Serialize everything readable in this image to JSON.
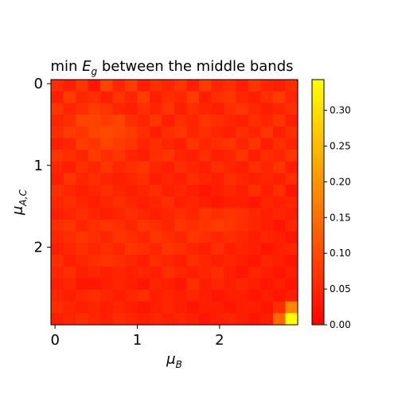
{
  "chart_data": {
    "type": "heatmap",
    "title_prefix": "min ",
    "title_symbol": "E",
    "title_subscript": "g",
    "title_suffix": " between the middle bands",
    "xlabel_symbol": "μ",
    "xlabel_subscript": "B",
    "ylabel_symbol": "μ",
    "ylabel_subscript": "A,C",
    "xlim": [
      -0.05,
      2.95
    ],
    "ylim": [
      2.95,
      -0.05
    ],
    "x_ticks": [
      "0",
      "1",
      "2"
    ],
    "y_ticks": [
      "0",
      "1",
      "2"
    ],
    "colormap": "autumn",
    "colormap_colors": [
      "#ff0000",
      "#ffff00"
    ],
    "color_range": [
      0.0,
      0.343
    ],
    "colorbar_ticks": [
      "0.00",
      "0.05",
      "0.10",
      "0.15",
      "0.20",
      "0.25",
      "0.30"
    ],
    "grid": false,
    "values": [
      [
        0.06,
        0.04,
        0.07,
        0.03,
        0.09,
        0.05,
        0.08,
        0.04,
        0.06,
        0.05,
        0.07,
        0.04,
        0.08,
        0.05,
        0.06,
        0.04,
        0.07,
        0.05,
        0.04,
        0.06
      ],
      [
        0.04,
        0.08,
        0.05,
        0.06,
        0.04,
        0.07,
        0.05,
        0.08,
        0.04,
        0.06,
        0.05,
        0.08,
        0.04,
        0.06,
        0.07,
        0.05,
        0.04,
        0.06,
        0.08,
        0.05
      ],
      [
        0.07,
        0.05,
        0.06,
        0.08,
        0.07,
        0.05,
        0.04,
        0.06,
        0.05,
        0.07,
        0.04,
        0.06,
        0.05,
        0.04,
        0.06,
        0.07,
        0.05,
        0.04,
        0.05,
        0.06
      ],
      [
        0.05,
        0.06,
        0.09,
        0.09,
        0.08,
        0.09,
        0.06,
        0.05,
        0.07,
        0.04,
        0.06,
        0.05,
        0.07,
        0.06,
        0.05,
        0.04,
        0.06,
        0.05,
        0.07,
        0.04
      ],
      [
        0.06,
        0.08,
        0.07,
        0.09,
        0.1,
        0.09,
        0.08,
        0.06,
        0.04,
        0.06,
        0.07,
        0.05,
        0.06,
        0.05,
        0.04,
        0.06,
        0.05,
        0.07,
        0.04,
        0.06
      ],
      [
        0.04,
        0.05,
        0.08,
        0.07,
        0.09,
        0.08,
        0.07,
        0.05,
        0.06,
        0.05,
        0.04,
        0.07,
        0.05,
        0.06,
        0.07,
        0.05,
        0.07,
        0.04,
        0.06,
        0.05
      ],
      [
        0.07,
        0.06,
        0.05,
        0.08,
        0.06,
        0.07,
        0.05,
        0.04,
        0.06,
        0.07,
        0.05,
        0.04,
        0.06,
        0.04,
        0.05,
        0.07,
        0.04,
        0.06,
        0.05,
        0.07
      ],
      [
        0.05,
        0.04,
        0.06,
        0.05,
        0.07,
        0.05,
        0.06,
        0.07,
        0.05,
        0.04,
        0.06,
        0.05,
        0.04,
        0.06,
        0.05,
        0.04,
        0.06,
        0.05,
        0.07,
        0.04
      ],
      [
        0.04,
        0.07,
        0.05,
        0.06,
        0.05,
        0.04,
        0.05,
        0.06,
        0.04,
        0.05,
        0.04,
        0.06,
        0.05,
        0.04,
        0.06,
        0.05,
        0.04,
        0.05,
        0.04,
        0.06
      ],
      [
        0.06,
        0.05,
        0.04,
        0.05,
        0.06,
        0.05,
        0.04,
        0.05,
        0.06,
        0.04,
        0.05,
        0.04,
        0.03,
        0.04,
        0.05,
        0.04,
        0.06,
        0.04,
        0.06,
        0.03
      ],
      [
        0.05,
        0.06,
        0.05,
        0.04,
        0.05,
        0.06,
        0.05,
        0.04,
        0.05,
        0.06,
        0.04,
        0.05,
        0.04,
        0.03,
        0.04,
        0.04,
        0.03,
        0.05,
        0.04,
        0.05
      ],
      [
        0.04,
        0.05,
        0.06,
        0.05,
        0.04,
        0.05,
        0.06,
        0.05,
        0.04,
        0.05,
        0.06,
        0.05,
        0.07,
        0.06,
        0.07,
        0.06,
        0.05,
        0.04,
        0.05,
        0.04
      ],
      [
        0.06,
        0.07,
        0.05,
        0.06,
        0.07,
        0.06,
        0.05,
        0.07,
        0.06,
        0.05,
        0.07,
        0.06,
        0.07,
        0.08,
        0.07,
        0.06,
        0.05,
        0.04,
        0.03,
        0.05
      ],
      [
        0.05,
        0.06,
        0.07,
        0.06,
        0.05,
        0.07,
        0.06,
        0.05,
        0.07,
        0.06,
        0.05,
        0.07,
        0.06,
        0.05,
        0.06,
        0.05,
        0.04,
        0.05,
        0.04,
        0.03
      ],
      [
        0.04,
        0.05,
        0.06,
        0.05,
        0.06,
        0.05,
        0.07,
        0.06,
        0.05,
        0.07,
        0.06,
        0.05,
        0.04,
        0.06,
        0.04,
        0.05,
        0.04,
        0.03,
        0.04,
        0.05
      ],
      [
        0.06,
        0.04,
        0.05,
        0.06,
        0.07,
        0.06,
        0.05,
        0.04,
        0.06,
        0.05,
        0.04,
        0.06,
        0.05,
        0.04,
        0.05,
        0.04,
        0.03,
        0.05,
        0.04,
        0.03
      ],
      [
        0.05,
        0.06,
        0.04,
        0.05,
        0.04,
        0.05,
        0.04,
        0.05,
        0.04,
        0.06,
        0.05,
        0.04,
        0.05,
        0.06,
        0.04,
        0.03,
        0.05,
        0.04,
        0.03,
        0.04
      ],
      [
        0.04,
        0.05,
        0.03,
        0.03,
        0.04,
        0.05,
        0.04,
        0.03,
        0.05,
        0.04,
        0.03,
        0.06,
        0.04,
        0.05,
        0.04,
        0.05,
        0.04,
        0.03,
        0.04,
        0.03
      ],
      [
        0.05,
        0.04,
        0.05,
        0.06,
        0.05,
        0.04,
        0.05,
        0.06,
        0.04,
        0.05,
        0.04,
        0.05,
        0.04,
        0.03,
        0.04,
        0.04,
        0.03,
        0.04,
        0.03,
        0.04
      ],
      [
        0.06,
        0.05,
        0.04,
        0.05,
        0.04,
        0.05,
        0.04,
        0.03,
        0.04,
        0.05,
        0.04,
        0.03,
        0.04,
        0.04,
        0.03,
        0.04,
        0.04,
        0.03,
        0.06,
        0.18
      ],
      [
        0.04,
        0.05,
        0.06,
        0.05,
        0.04,
        0.06,
        0.05,
        0.04,
        0.05,
        0.04,
        0.05,
        0.04,
        0.03,
        0.04,
        0.05,
        0.04,
        0.03,
        0.04,
        0.14,
        0.34
      ]
    ]
  }
}
